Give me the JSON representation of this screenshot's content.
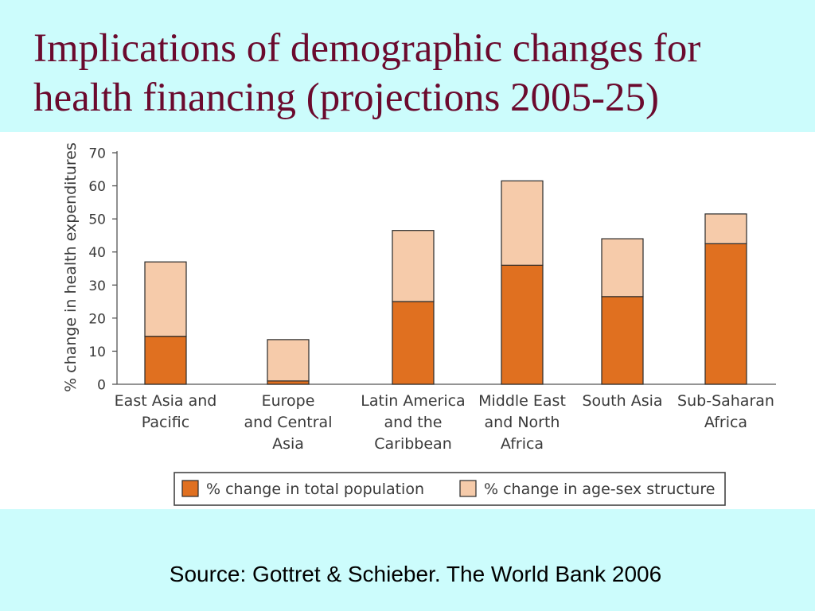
{
  "slide": {
    "title": "Implications of demographic changes for health financing (projections 2005-25)",
    "source": "Source: Gottret & Schieber. The World Bank 2006"
  },
  "colors": {
    "background": "#ccfcfc",
    "title": "#6b0a2e",
    "population": "#e07020",
    "age_sex": "#f6cbaa",
    "bar_outline": "#2a2a2a"
  },
  "chart_data": {
    "type": "bar",
    "stacked": true,
    "ylabel": "% change in health expenditures",
    "ylim": [
      0,
      70
    ],
    "yticks": [
      0,
      10,
      20,
      30,
      40,
      50,
      60,
      70
    ],
    "categories": [
      [
        "East Asia and",
        "Pacific"
      ],
      [
        "Europe",
        "and Central",
        "Asia"
      ],
      [
        "Latin America",
        "and the",
        "Caribbean"
      ],
      [
        "Middle East",
        "and North",
        "Africa"
      ],
      [
        "South Asia"
      ],
      [
        "Sub-Saharan",
        "Africa"
      ]
    ],
    "series": [
      {
        "name": "% change in total population",
        "values": [
          14.5,
          1,
          25,
          36,
          26.5,
          42.5
        ]
      },
      {
        "name": "% change in age-sex structure",
        "values": [
          22.5,
          12.5,
          21.5,
          25.5,
          17.5,
          9
        ]
      }
    ],
    "legend_position": "bottom",
    "grid": false
  }
}
